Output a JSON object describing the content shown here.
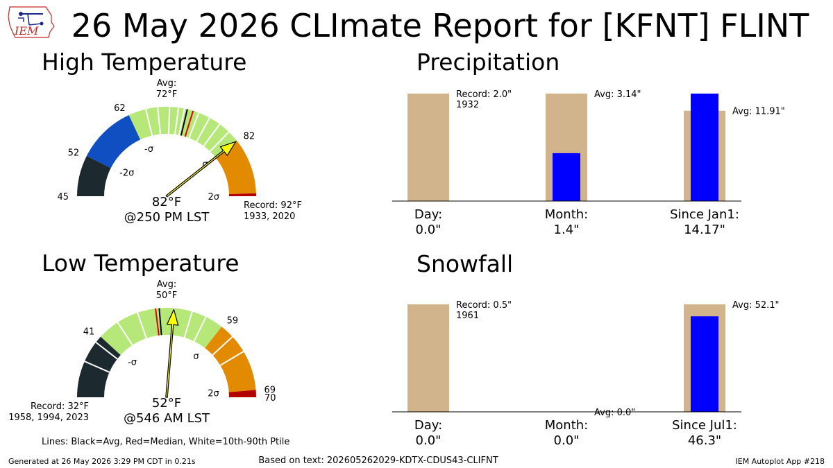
{
  "logo": {
    "text": "IEM",
    "icon": "iem-iowa-state-logo"
  },
  "title": "26 May 2026 CLImate Report for [KFNT] FLINT",
  "colors": {
    "tan": "#d2b48c",
    "blue": "#0000ff",
    "very_low": "#1c2a30",
    "low": "#0f4fc2",
    "normal": "#b5e878",
    "high": "#e38b00",
    "record": "#b30000",
    "needle": "#ffff00"
  },
  "chart_data": [
    {
      "type": "gauge",
      "title": "High Temperature",
      "unit": "°F",
      "range": [
        45,
        92
      ],
      "bands": [
        {
          "from": 45,
          "to": 52,
          "color_key": "very_low"
        },
        {
          "from": 52,
          "to": 62,
          "color_key": "low"
        },
        {
          "from": 62,
          "to": 82,
          "color_key": "normal"
        },
        {
          "from": 82,
          "to": 91.5,
          "color_key": "high"
        },
        {
          "from": 91.5,
          "to": 92,
          "color_key": "record"
        }
      ],
      "ticks": [
        {
          "value": 45,
          "label": "45"
        },
        {
          "value": 52,
          "label": "52"
        },
        {
          "value": 62,
          "label": "62"
        },
        {
          "value": 82,
          "label": "82"
        }
      ],
      "sigma_labels": [
        {
          "value": 52,
          "label": "-2σ"
        },
        {
          "value": 62,
          "label": "-σ"
        },
        {
          "value": 82,
          "label": "σ"
        },
        {
          "value": 92,
          "label": "2σ"
        }
      ],
      "percentile_lines": [
        65,
        67,
        69,
        70.5,
        71.5,
        74,
        76,
        78,
        80
      ],
      "avg": 72,
      "median": 73,
      "avg_label": [
        "Avg:",
        "72°F"
      ],
      "observed": 82,
      "observed_label": [
        "82°F",
        "@250 PM LST"
      ],
      "record_label": [
        "Record: 92°F",
        "1933, 2020"
      ],
      "record_side": "right"
    },
    {
      "type": "gauge",
      "title": "Low Temperature",
      "unit": "°F",
      "range": [
        32,
        70
      ],
      "bands": [
        {
          "from": 32,
          "to": 41,
          "color_key": "very_low"
        },
        {
          "from": 41,
          "to": 59,
          "color_key": "normal"
        },
        {
          "from": 59,
          "to": 69,
          "color_key": "high"
        },
        {
          "from": 69,
          "to": 70,
          "color_key": "record"
        }
      ],
      "ticks": [
        {
          "value": 41,
          "label": "41"
        },
        {
          "value": 59,
          "label": "59"
        },
        {
          "value": 69,
          "label": "69"
        },
        {
          "value": 70,
          "label": "70"
        }
      ],
      "sigma_labels": [
        {
          "value": 41,
          "label": "-σ"
        },
        {
          "value": 59,
          "label": "σ"
        },
        {
          "value": 69,
          "label": "2σ"
        }
      ],
      "percentile_lines": [
        37,
        40,
        44,
        47,
        52,
        54.5,
        56.5,
        61,
        63.5
      ],
      "avg": 50,
      "median": 49.5,
      "avg_label": [
        "Avg:",
        "50°F"
      ],
      "observed": 52,
      "observed_label": [
        "52°F",
        "@546 AM LST"
      ],
      "record_label": [
        "Record: 32°F",
        "1958, 1994, 2023"
      ],
      "record_side": "left"
    },
    {
      "type": "bar",
      "title": "Precipitation",
      "categories": [
        [
          "Day:",
          "0.0\""
        ],
        [
          "Month:",
          "1.4\""
        ],
        [
          "Since Jan1:",
          "14.17\""
        ]
      ],
      "observed": [
        0.0,
        1.4,
        14.17
      ],
      "reference": [
        2.0,
        3.14,
        11.91
      ],
      "reference_labels": [
        [
          "Record: 2.0\"",
          "1932"
        ],
        [
          "Avg: 3.14\""
        ],
        [
          "Avg: 11.91\""
        ]
      ],
      "normalize_per_category": true
    },
    {
      "type": "bar",
      "title": "Snowfall",
      "categories": [
        [
          "Day:",
          "0.0\""
        ],
        [
          "Month:",
          "0.0\""
        ],
        [
          "Since Jul1:",
          "46.3\""
        ]
      ],
      "observed": [
        0.0,
        0.0,
        46.3
      ],
      "reference": [
        0.5,
        0.0,
        52.1
      ],
      "reference_labels": [
        [
          "Record: 0.5\"",
          "1961"
        ],
        [
          "Avg: 0.0\""
        ],
        [
          "Avg: 52.1\""
        ]
      ],
      "normalize_per_category": true
    }
  ],
  "legend_note": "Lines: Black=Avg, Red=Median, White=10th-90th Ptile",
  "footer": {
    "generated": "Generated at 26 May 2026 3:29 PM CDT in 0.21s",
    "source": "Based on text: 202605262029-KDTX-CDUS43-CLIFNT",
    "app": "IEM Autoplot App #218"
  }
}
